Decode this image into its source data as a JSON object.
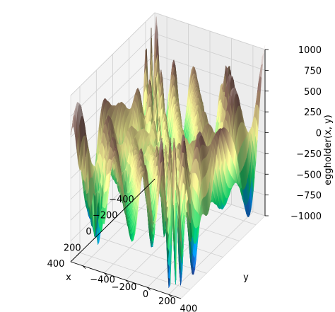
{
  "chart_data": {
    "type": "surface",
    "title": "",
    "function": "eggholder(x, y)",
    "xlabel": "x",
    "ylabel": "y",
    "zlabel": "eggholder(x, y)",
    "xlim": [
      -512,
      512
    ],
    "ylim": [
      -512,
      512
    ],
    "zlim": [
      -1000,
      1000
    ],
    "x_ticks": [
      -400,
      -200,
      0,
      200,
      400
    ],
    "y_ticks": [
      -400,
      -200,
      0,
      200,
      400
    ],
    "z_ticks": [
      -1000,
      -750,
      -500,
      -250,
      0,
      250,
      500,
      750,
      1000
    ],
    "x_tick_labels": [
      "−400",
      "−200",
      "0",
      "200",
      "400"
    ],
    "y_tick_labels": [
      "−400",
      "−200",
      "0",
      "200",
      "400"
    ],
    "z_tick_labels": [
      "−1000",
      "−750",
      "−500",
      "−250",
      "0",
      "250",
      "500",
      "750",
      "1000"
    ],
    "colormap": "terrain",
    "grid": true,
    "view": {
      "elevation_deg": 45,
      "azimuth_deg": 45
    }
  }
}
